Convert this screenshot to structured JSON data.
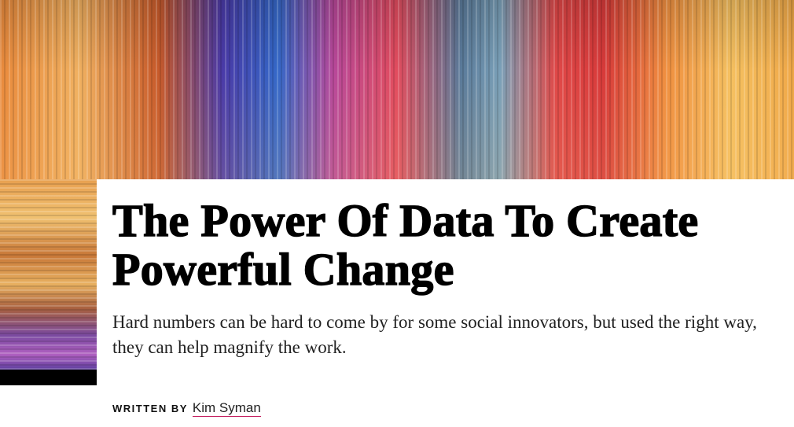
{
  "header": {
    "title": "The Power Of Data To Create Powerful Change",
    "subtitle": "Hard numbers can be hard to come by for some social innovators, but used the right way, they can help magnify the work.",
    "byline_label": "WRITTEN BY",
    "author": "Kim Syman"
  }
}
